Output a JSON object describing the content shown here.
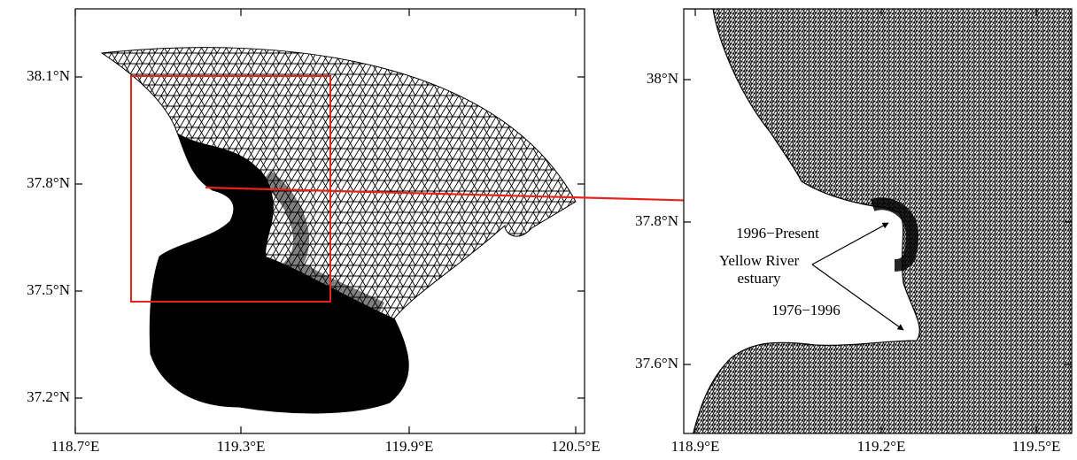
{
  "left_map": {
    "y_tick_labels": [
      "38.1°N",
      "37.8°N",
      "37.5°N",
      "37.2°N"
    ],
    "x_tick_labels": [
      "118.7°E",
      "119.3°E",
      "119.9°E",
      "120.5°E"
    ]
  },
  "right_map": {
    "y_tick_labels": [
      "38°N",
      "37.8°N",
      "37.6°N"
    ],
    "x_tick_labels": [
      "118.9°E",
      "119.2°E",
      "119.5°E"
    ],
    "annotations": {
      "recent": "1996−Present",
      "name_line1": "Yellow River",
      "name_line2": "estuary",
      "older": "1976−1996"
    }
  }
}
